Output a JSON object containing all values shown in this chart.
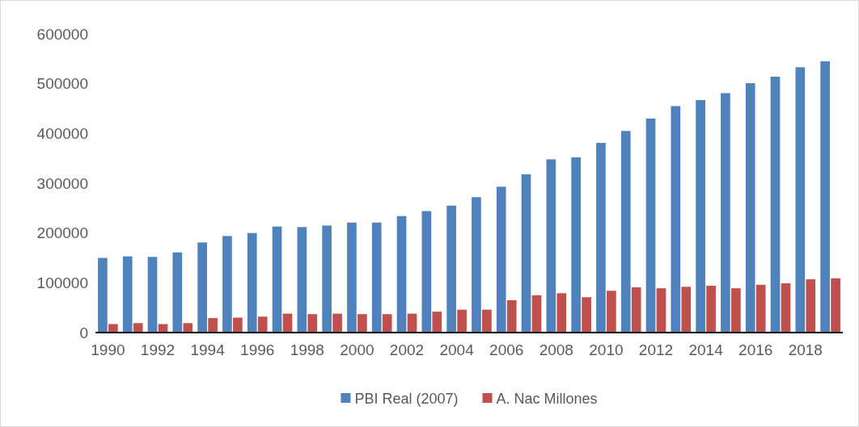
{
  "chart_data": {
    "type": "bar",
    "categories": [
      "1990",
      null,
      "1992",
      null,
      "1994",
      null,
      "1996",
      null,
      "1998",
      null,
      "2000",
      null,
      "2002",
      null,
      "2004",
      null,
      "2006",
      null,
      "2008",
      null,
      "2010",
      null,
      "2012",
      null,
      "2014",
      null,
      "2016",
      null,
      "2018",
      null
    ],
    "series": [
      {
        "name": "PBI Real (2007)",
        "color": "#4f81bd",
        "values": [
          150000,
          153000,
          152000,
          161000,
          181000,
          194000,
          200000,
          213000,
          212000,
          215000,
          221000,
          221000,
          234000,
          244000,
          255000,
          272000,
          293000,
          318000,
          348000,
          352000,
          381000,
          405000,
          430000,
          455000,
          467000,
          481000,
          501000,
          514000,
          533000,
          545000
        ]
      },
      {
        "name": "A. Nac Millones",
        "color": "#c0504d",
        "values": [
          17000,
          19000,
          17000,
          19000,
          29000,
          30000,
          32000,
          38000,
          37000,
          38000,
          37000,
          37000,
          38000,
          42000,
          46000,
          46000,
          65000,
          75000,
          79000,
          71000,
          84000,
          91000,
          89000,
          92000,
          94000,
          89000,
          96000,
          99000,
          107000,
          109000
        ]
      }
    ],
    "ylim": [
      0,
      600000
    ],
    "yticks": [
      0,
      100000,
      200000,
      300000,
      400000,
      500000,
      600000
    ],
    "grid": false,
    "legend": "bottom"
  }
}
